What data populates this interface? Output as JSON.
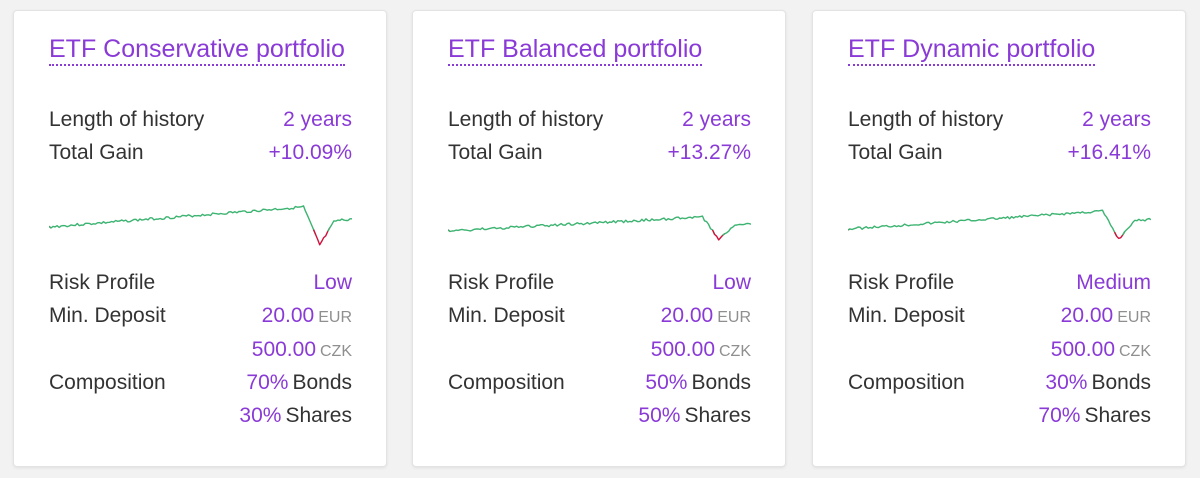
{
  "colors": {
    "accent": "#8a3ad6",
    "positive": "#3cb371",
    "negative": "#d0103a"
  },
  "labels": {
    "history": "Length of history",
    "gain": "Total Gain",
    "risk": "Risk Profile",
    "deposit": "Min. Deposit",
    "composition": "Composition"
  },
  "cards": [
    {
      "title": "ETF Conservative portfolio",
      "history": "2 years",
      "gain": "+10.09%",
      "risk": "Low",
      "deposit_eur": "20.00",
      "deposit_eur_unit": "EUR",
      "deposit_czk": "500.00",
      "deposit_czk_unit": "CZK",
      "bonds_pct": "70%",
      "bonds_label": "Bonds",
      "shares_pct": "30%",
      "shares_label": "Shares",
      "chart_shape": "conservative"
    },
    {
      "title": "ETF Balanced portfolio",
      "history": "2 years",
      "gain": "+13.27%",
      "risk": "Low",
      "deposit_eur": "20.00",
      "deposit_eur_unit": "EUR",
      "deposit_czk": "500.00",
      "deposit_czk_unit": "CZK",
      "bonds_pct": "50%",
      "bonds_label": "Bonds",
      "shares_pct": "50%",
      "shares_label": "Shares",
      "chart_shape": "balanced"
    },
    {
      "title": "ETF Dynamic portfolio",
      "history": "2 years",
      "gain": "+16.41%",
      "risk": "Medium",
      "deposit_eur": "20.00",
      "deposit_eur_unit": "EUR",
      "deposit_czk": "500.00",
      "deposit_czk_unit": "CZK",
      "bonds_pct": "30%",
      "bonds_label": "Bonds",
      "shares_pct": "70%",
      "shares_label": "Shares",
      "chart_shape": "dynamic"
    }
  ]
}
